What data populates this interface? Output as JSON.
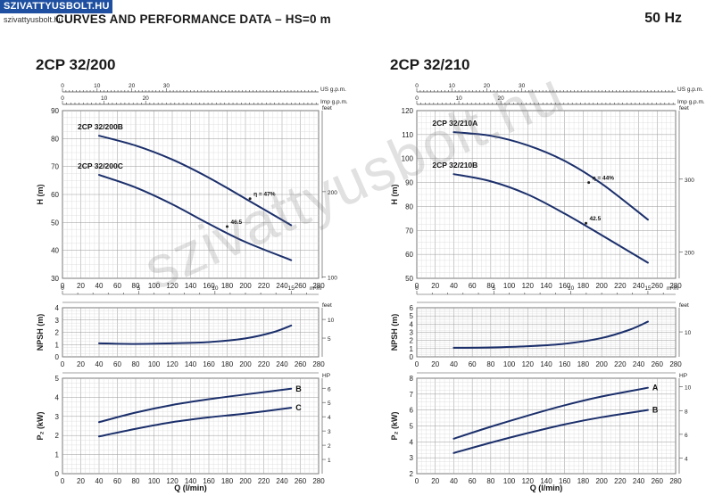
{
  "header": {
    "logo_text": "SZIVATTYUSBOLT.HU",
    "logo_subtext": "szivattyusbolt.hu",
    "title": "CURVES AND PERFORMANCE DATA  –  HS=0 m",
    "frequency": "50 Hz",
    "watermark": "szivattyusbolt.hu"
  },
  "chart_data": [
    {
      "model": "2CP 32/200",
      "type": "line",
      "xlabel": "Q (l/min)",
      "x_ticks": [
        0,
        20,
        40,
        60,
        80,
        100,
        120,
        140,
        160,
        180,
        200,
        220,
        240,
        260,
        280
      ],
      "xlim": [
        0,
        280
      ],
      "top_axes": [
        {
          "unit": "US g.p.m.",
          "ticks": [
            0,
            10,
            20,
            30
          ],
          "per_unit": 3.785
        },
        {
          "unit": "Imp g.p.m.",
          "ticks": [
            0,
            10,
            20
          ],
          "per_unit": 4.546
        }
      ],
      "m3h_axis": {
        "unit": "m³/h",
        "ticks": [
          0,
          5,
          10,
          15
        ],
        "per_unit": 16.667
      },
      "panels": [
        {
          "id": "head",
          "ylabel": "H (m)",
          "ylim": [
            30,
            90
          ],
          "y_ticks": [
            30,
            40,
            50,
            60,
            70,
            80,
            90
          ],
          "right_unit": "feet",
          "right_ticks": [
            {
              "label": "200",
              "value": 61
            },
            {
              "label": "100",
              "value": 30.5
            }
          ],
          "series": [
            {
              "name": "2CP 32/200B",
              "x": [
                40,
                80,
                120,
                160,
                200,
                250
              ],
              "y": [
                81,
                77.5,
                72.5,
                66,
                58.5,
                49
              ]
            },
            {
              "name": "2CP 32/200C",
              "x": [
                40,
                80,
                120,
                160,
                200,
                250
              ],
              "y": [
                67,
                62.5,
                56.5,
                49.5,
                43,
                36.5
              ]
            }
          ],
          "annotations": [
            {
              "text": "η = 47%",
              "x": 205,
              "y": 58.5
            },
            {
              "text": "46.5",
              "x": 180,
              "y": 48.5
            }
          ]
        },
        {
          "id": "npsh",
          "ylabel": "NPSH (m)",
          "ylim": [
            0,
            4
          ],
          "y_ticks": [
            0,
            1,
            2,
            3,
            4
          ],
          "right_unit": "feet",
          "right_ticks": [
            {
              "label": "5",
              "value": 1.524
            },
            {
              "label": "10",
              "value": 3.048
            }
          ],
          "series": [
            {
              "name": "",
              "x": [
                40,
                80,
                120,
                160,
                200,
                230,
                250
              ],
              "y": [
                1.1,
                1.05,
                1.1,
                1.2,
                1.5,
                2.0,
                2.55
              ]
            }
          ]
        },
        {
          "id": "power",
          "ylabel": "P₂ (kW)",
          "ylim": [
            0,
            5
          ],
          "y_ticks": [
            0,
            1,
            2,
            3,
            4,
            5
          ],
          "right_unit": "HP",
          "right_ticks": [
            {
              "label": "1",
              "value": 0.746
            },
            {
              "label": "2",
              "value": 1.491
            },
            {
              "label": "3",
              "value": 2.237
            },
            {
              "label": "4",
              "value": 2.983
            },
            {
              "label": "5",
              "value": 3.729
            },
            {
              "label": "6",
              "value": 4.474
            }
          ],
          "series": [
            {
              "name": "B",
              "x": [
                40,
                80,
                120,
                160,
                200,
                250
              ],
              "y": [
                2.7,
                3.2,
                3.6,
                3.9,
                4.15,
                4.45
              ]
            },
            {
              "name": "C",
              "x": [
                40,
                80,
                120,
                160,
                200,
                250
              ],
              "y": [
                1.95,
                2.35,
                2.7,
                2.95,
                3.15,
                3.45
              ]
            }
          ]
        }
      ]
    },
    {
      "model": "2CP 32/210",
      "type": "line",
      "xlabel": "Q (l/min)",
      "x_ticks": [
        0,
        20,
        40,
        60,
        80,
        100,
        120,
        140,
        160,
        180,
        200,
        220,
        240,
        260,
        280
      ],
      "xlim": [
        0,
        280
      ],
      "top_axes": [
        {
          "unit": "US g.p.m.",
          "ticks": [
            0,
            10,
            20,
            30
          ],
          "per_unit": 3.785
        },
        {
          "unit": "Imp g.p.m.",
          "ticks": [
            0,
            10,
            20
          ],
          "per_unit": 4.546
        }
      ],
      "m3h_axis": {
        "unit": "m³/h",
        "ticks": [
          0,
          5,
          10,
          15
        ],
        "per_unit": 16.667
      },
      "panels": [
        {
          "id": "head",
          "ylabel": "H (m)",
          "ylim": [
            50,
            120
          ],
          "y_ticks": [
            50,
            60,
            70,
            80,
            90,
            100,
            110,
            120
          ],
          "right_unit": "feet",
          "right_ticks": [
            {
              "label": "300",
              "value": 91.4
            },
            {
              "label": "200",
              "value": 61
            }
          ],
          "series": [
            {
              "name": "2CP 32/210A",
              "x": [
                40,
                80,
                120,
                160,
                200,
                250
              ],
              "y": [
                111,
                109.5,
                105.5,
                99,
                89.5,
                74.5
              ]
            },
            {
              "name": "2CP 32/210B",
              "x": [
                40,
                80,
                120,
                160,
                200,
                250
              ],
              "y": [
                93.5,
                90.5,
                85,
                77,
                68,
                56.5
              ]
            }
          ],
          "annotations": [
            {
              "text": "η = 44%",
              "x": 186,
              "y": 90
            },
            {
              "text": "42.5",
              "x": 183,
              "y": 73
            }
          ]
        },
        {
          "id": "npsh",
          "ylabel": "NPSH (m)",
          "ylim": [
            0,
            6
          ],
          "y_ticks": [
            0,
            1,
            2,
            3,
            4,
            5,
            6
          ],
          "right_unit": "feet",
          "right_ticks": [
            {
              "label": "10",
              "value": 3.048
            }
          ],
          "series": [
            {
              "name": "",
              "x": [
                40,
                80,
                120,
                160,
                200,
                230,
                250
              ],
              "y": [
                1.1,
                1.15,
                1.3,
                1.6,
                2.3,
                3.3,
                4.3
              ]
            }
          ]
        },
        {
          "id": "power",
          "ylabel": "P₂ (kW)",
          "ylim": [
            2,
            8
          ],
          "y_ticks": [
            2,
            3,
            4,
            5,
            6,
            7,
            8
          ],
          "right_unit": "HP",
          "right_ticks": [
            {
              "label": "4",
              "value": 2.983
            },
            {
              "label": "6",
              "value": 4.474
            },
            {
              "label": "8",
              "value": 5.966
            },
            {
              "label": "10",
              "value": 7.457
            }
          ],
          "series": [
            {
              "name": "A",
              "x": [
                40,
                80,
                120,
                160,
                200,
                250
              ],
              "y": [
                4.2,
                4.95,
                5.65,
                6.3,
                6.85,
                7.4
              ]
            },
            {
              "name": "B",
              "x": [
                40,
                80,
                120,
                160,
                200,
                250
              ],
              "y": [
                3.3,
                3.95,
                4.55,
                5.1,
                5.55,
                6.0
              ]
            }
          ]
        }
      ]
    }
  ]
}
